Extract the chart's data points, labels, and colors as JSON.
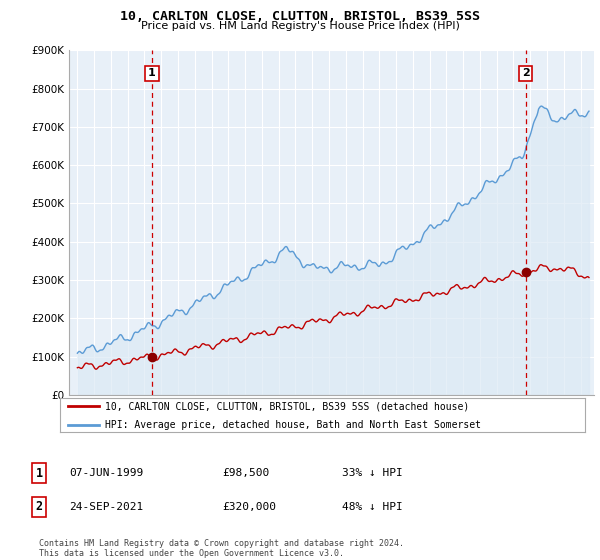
{
  "title": "10, CARLTON CLOSE, CLUTTON, BRISTOL, BS39 5SS",
  "subtitle": "Price paid vs. HM Land Registry's House Price Index (HPI)",
  "legend_line1": "10, CARLTON CLOSE, CLUTTON, BRISTOL, BS39 5SS (detached house)",
  "legend_line2": "HPI: Average price, detached house, Bath and North East Somerset",
  "sale1_label": "1",
  "sale1_date": "07-JUN-1999",
  "sale1_price": "£98,500",
  "sale1_hpi": "33% ↓ HPI",
  "sale2_label": "2",
  "sale2_date": "24-SEP-2021",
  "sale2_price": "£320,000",
  "sale2_hpi": "48% ↓ HPI",
  "footer": "Contains HM Land Registry data © Crown copyright and database right 2024.\nThis data is licensed under the Open Government Licence v3.0.",
  "hpi_color": "#5b9bd5",
  "hpi_fill_color": "#dce9f5",
  "price_color": "#c00000",
  "sale_marker_color": "#8b0000",
  "vline_color": "#cc0000",
  "background_color": "#ffffff",
  "plot_bg_color": "#e8f0f8",
  "grid_color": "#ffffff",
  "ylim": [
    0,
    900000
  ],
  "yticks": [
    0,
    100000,
    200000,
    300000,
    400000,
    500000,
    600000,
    700000,
    800000,
    900000
  ],
  "ytick_labels": [
    "£0",
    "£100K",
    "£200K",
    "£300K",
    "£400K",
    "£500K",
    "£600K",
    "£700K",
    "£800K",
    "£900K"
  ],
  "sale1_x": 1999.44,
  "sale1_y": 98500,
  "sale2_x": 2021.73,
  "sale2_y": 320000,
  "xlim_left": 1994.5,
  "xlim_right": 2025.8
}
